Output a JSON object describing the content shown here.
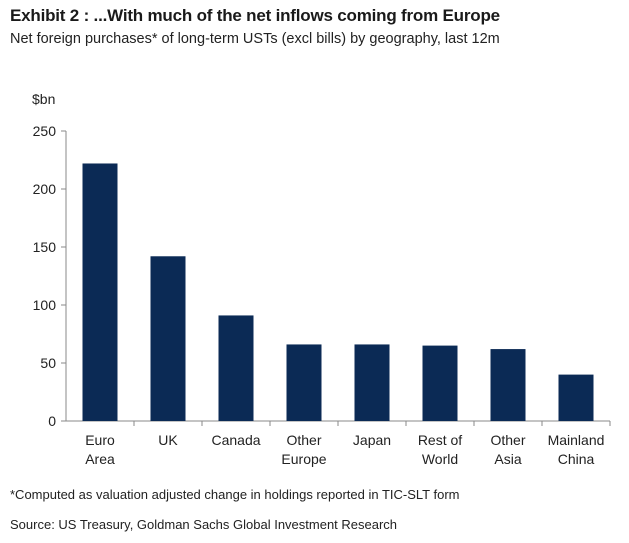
{
  "exhibit": {
    "title": "Exhibit 2 : ...With much of the net inflows coming from Europe",
    "subtitle": "Net foreign purchases* of long-term USTs (excl bills) by geography, last 12m",
    "footnote": "*Computed as valuation adjusted change in holdings reported in TIC-SLT form",
    "source": "Source: US Treasury, Goldman Sachs Global Investment Research"
  },
  "chart_data": {
    "type": "bar",
    "ylabel": "$bn",
    "ylim": [
      0,
      250
    ],
    "yticks": [
      0,
      50,
      100,
      150,
      200,
      250
    ],
    "categories": [
      [
        "Euro",
        "Area"
      ],
      [
        "UK"
      ],
      [
        "Canada"
      ],
      [
        "Other",
        "Europe"
      ],
      [
        "Japan"
      ],
      [
        "Rest of",
        "World"
      ],
      [
        "Other",
        "Asia"
      ],
      [
        "Mainland",
        "China"
      ]
    ],
    "values": [
      222,
      142,
      91,
      66,
      66,
      65,
      62,
      40
    ],
    "bar_color": "#0b2a55",
    "grid": false,
    "legend": "none"
  }
}
